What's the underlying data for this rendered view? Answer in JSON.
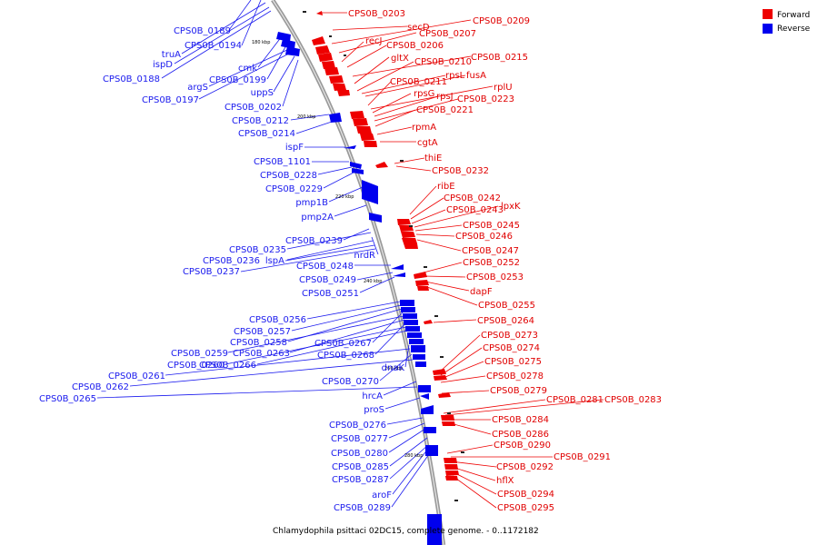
{
  "caption": "Chlamydophila psittaci 02DC15, complete genome. - 0..1172182",
  "legend": [
    {
      "label": "Forward",
      "color": "#ee0000"
    },
    {
      "label": "Reverse",
      "color": "#0000ee"
    }
  ],
  "colors": {
    "forward": "#ee0000",
    "reverse": "#0000ee",
    "backbone": "#9a9a9a"
  },
  "kbp_marks": [
    "180 kbp",
    "200 kbp",
    "220 kbp",
    "240 kbp",
    "260 kbp",
    "280 kbp"
  ],
  "forward_labels": [
    "CPS0B_0203",
    "CPS0B_0209",
    "secD",
    "CPS0B_0207",
    "recJ",
    "CPS0B_0206",
    "CPS0B_0215",
    "gltX",
    "CPS0B_0210",
    "rpsL",
    "fusA",
    "CPS0B_0211",
    "rplU",
    "rpsG",
    "rpsJ",
    "CPS0B_0223",
    "CPS0B_0221",
    "rpmA",
    "cgtA",
    "thiE",
    "CPS0B_0232",
    "ribE",
    "CPS0B_0242",
    "CPS0B_0243",
    "lpxK",
    "CPS0B_0245",
    "CPS0B_0246",
    "CPS0B_0247",
    "CPS0B_0252",
    "CPS0B_0253",
    "dapF",
    "CPS0B_0255",
    "CPS0B_0264",
    "CPS0B_0273",
    "CPS0B_0274",
    "CPS0B_0275",
    "CPS0B_0278",
    "CPS0B_0279",
    "CPS0B_0281",
    "CPS0B_0283",
    "CPS0B_0284",
    "CPS0B_0286",
    "CPS0B_0290",
    "CPS0B_0291",
    "CPS0B_0292",
    "hflX",
    "CPS0B_0294",
    "CPS0B_0295"
  ],
  "reverse_labels": [
    "CPS0B_0189",
    "CPS0B_0194",
    "truA",
    "ispD",
    "CPS0B_0188",
    "cmk",
    "CPS0B_0199",
    "argS",
    "CPS0B_0197",
    "uppS",
    "CPS0B_0202",
    "CPS0B_0212",
    "CPS0B_0214",
    "ispF",
    "CPS0B_1101",
    "CPS0B_0228",
    "CPS0B_0229",
    "pmp1B",
    "pmp2A",
    "CPS0B_0239",
    "CPS0B_0235",
    "nrdR",
    "CPS0B_0236",
    "lspA",
    "CPS0B_0237",
    "CPS0B_0248",
    "CPS0B_0249",
    "CPS0B_0251",
    "CPS0B_0256",
    "CPS0B_0257",
    "CPS0B_0258",
    "CPS0B_0267",
    "CPS0B_0259",
    "CPS0B_0263",
    "CPS0B_0268",
    "CPS0B_0260",
    "CPS0B_0266",
    "dnaK",
    "CPS0B_0261",
    "CPS0B_0270",
    "CPS0B_0262",
    "hrcA",
    "CPS0B_0265",
    "proS",
    "CPS0B_0276",
    "CPS0B_0277",
    "CPS0B_0280",
    "CPS0B_0285",
    "CPS0B_0287",
    "aroF",
    "CPS0B_0289"
  ]
}
